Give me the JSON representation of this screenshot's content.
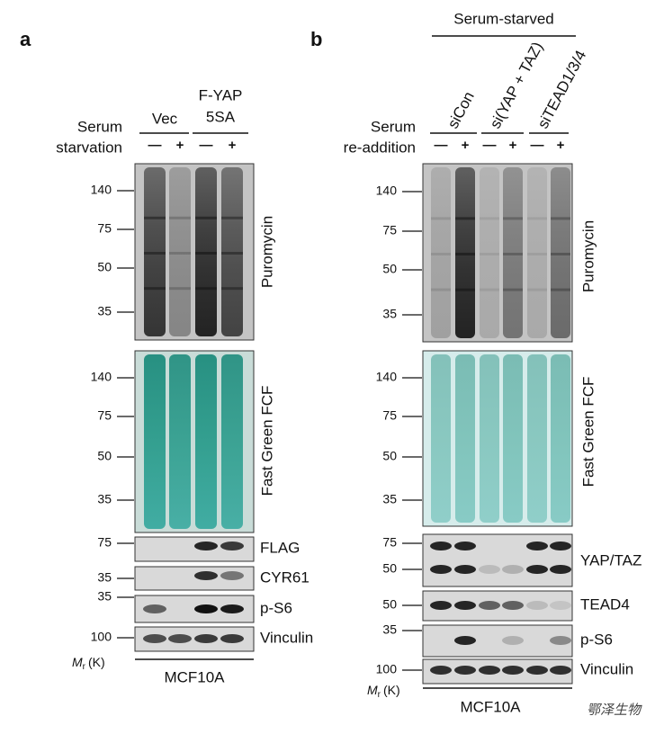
{
  "panel_a": {
    "label": "a",
    "condition": [
      "Serum",
      "starvation"
    ],
    "groups": [
      [
        "Vec"
      ],
      [
        "F-YAP",
        "5SA"
      ]
    ],
    "lanes": [
      "—",
      "+",
      "—",
      "+"
    ],
    "blots": [
      {
        "name": "Puromycin",
        "markers": [
          140,
          75,
          50,
          35
        ]
      },
      {
        "name": "Fast Green FCF",
        "markers": [
          140,
          75,
          50,
          35
        ]
      },
      {
        "name": "FLAG",
        "markers": [
          75
        ]
      },
      {
        "name": "CYR61",
        "markers": [
          35
        ]
      },
      {
        "name": "p-S6",
        "markers": [
          35
        ]
      },
      {
        "name": "Vinculin",
        "markers": [
          100
        ]
      }
    ],
    "mr": {
      "symbol": "M",
      "subscript": "r",
      "unit": "(K)"
    },
    "cell_line": "MCF10A"
  },
  "panel_b": {
    "label": "b",
    "header": "Serum-starved",
    "condition": [
      "Serum",
      "re-addition"
    ],
    "groups": [
      [
        "siCon"
      ],
      [
        "si(YAP + TAZ)"
      ],
      [
        "siTEAD1/3/4"
      ]
    ],
    "lanes": [
      "—",
      "+",
      "—",
      "+",
      "—",
      "+"
    ],
    "blots": [
      {
        "name": "Puromycin",
        "markers": [
          140,
          75,
          50,
          35
        ]
      },
      {
        "name": "Fast Green FCF",
        "markers": [
          140,
          75,
          50,
          35
        ]
      },
      {
        "name": "YAP/TAZ",
        "markers": [
          75,
          50
        ]
      },
      {
        "name": "TEAD4",
        "markers": [
          50
        ]
      },
      {
        "name": "p-S6",
        "markers": [
          35
        ]
      },
      {
        "name": "Vinculin",
        "markers": [
          100
        ]
      }
    ],
    "mr": {
      "symbol": "M",
      "subscript": "r",
      "unit": "(K)"
    },
    "cell_line": "MCF10A"
  },
  "watermark": "鄂泽生物"
}
